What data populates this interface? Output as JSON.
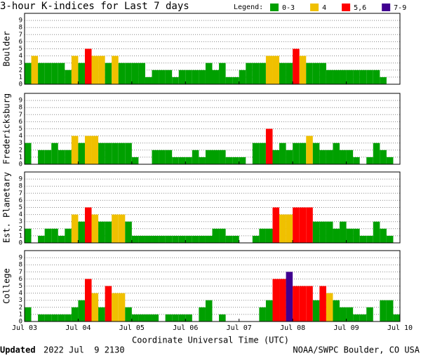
{
  "header": {
    "title": "3-hour K-indices for Last 7 days",
    "legend_title": "Legend:",
    "legend": [
      {
        "label": "0-3",
        "min": 0,
        "color": "#00a000"
      },
      {
        "label": "4",
        "min": 4,
        "color": "#f0c000"
      },
      {
        "label": "5,6",
        "min": 5,
        "color": "#ff0000"
      },
      {
        "label": "7-9",
        "min": 7,
        "color": "#400090"
      }
    ],
    "x_labels": [
      "Jul 03",
      "Jul 04",
      "Jul 05",
      "Jul 06",
      "Jul 07",
      "Jul 08",
      "Jul 09",
      "Jul 10"
    ],
    "xlabel": "Coordinate Universal Time (UTC)"
  },
  "footer": {
    "updated_label": "Updated",
    "updated_time": "2022 Jul  9 2130",
    "credit": "NOAA/SWPC Boulder, CO USA"
  },
  "chart_data": [
    {
      "type": "bar",
      "ylabel": "Boulder",
      "ylim": [
        0,
        10
      ],
      "yticks": [
        0,
        1,
        2,
        3,
        4,
        5,
        6,
        7,
        8,
        9
      ],
      "grid": true,
      "values": [
        3,
        4,
        3,
        3,
        3,
        3,
        2,
        4,
        3,
        5,
        4,
        4,
        3,
        4,
        3,
        3,
        3,
        3,
        1,
        2,
        2,
        2,
        1,
        2,
        2,
        2,
        2,
        3,
        2,
        3,
        1,
        1,
        2,
        3,
        3,
        3,
        4,
        4,
        3,
        3,
        5,
        4,
        3,
        3,
        3,
        2,
        2,
        2,
        2,
        2,
        2,
        2,
        2,
        1,
        0,
        0
      ]
    },
    {
      "type": "bar",
      "ylabel": "Fredericksburg",
      "ylim": [
        0,
        10
      ],
      "yticks": [
        0,
        1,
        2,
        3,
        4,
        5,
        6,
        7,
        8,
        9
      ],
      "grid": true,
      "values": [
        3,
        0,
        2,
        2,
        3,
        2,
        2,
        4,
        3,
        4,
        4,
        3,
        3,
        3,
        3,
        3,
        1,
        0,
        0,
        2,
        2,
        2,
        1,
        1,
        1,
        2,
        1,
        2,
        2,
        2,
        1,
        1,
        1,
        0,
        3,
        3,
        5,
        2,
        3,
        2,
        3,
        3,
        4,
        3,
        2,
        2,
        3,
        2,
        2,
        1,
        0,
        1,
        3,
        2,
        1,
        0
      ]
    },
    {
      "type": "bar",
      "ylabel": "Est. Planetary",
      "ylim": [
        0,
        10
      ],
      "yticks": [
        0,
        1,
        2,
        3,
        4,
        5,
        6,
        7,
        8,
        9
      ],
      "grid": true,
      "values": [
        2,
        0,
        1,
        2,
        2,
        1,
        2,
        4,
        3,
        5,
        4,
        3,
        3,
        4,
        4,
        3,
        1,
        1,
        1,
        1,
        1,
        1,
        1,
        1,
        1,
        1,
        1,
        1,
        2,
        2,
        1,
        1,
        0,
        0,
        1,
        2,
        2,
        5,
        4,
        4,
        5,
        5,
        5,
        3,
        3,
        3,
        2,
        3,
        2,
        2,
        1,
        1,
        3,
        2,
        1,
        0
      ]
    },
    {
      "type": "bar",
      "ylabel": "College",
      "ylim": [
        0,
        10
      ],
      "yticks": [
        0,
        1,
        2,
        3,
        4,
        5,
        6,
        7,
        8,
        9
      ],
      "grid": true,
      "values": [
        2,
        0,
        1,
        1,
        1,
        1,
        1,
        2,
        3,
        6,
        4,
        2,
        5,
        4,
        4,
        2,
        1,
        1,
        1,
        1,
        0,
        1,
        1,
        1,
        1,
        0,
        2,
        3,
        0,
        1,
        0,
        0,
        0,
        0,
        0,
        2,
        3,
        6,
        6,
        7,
        5,
        5,
        5,
        3,
        5,
        4,
        3,
        2,
        2,
        1,
        1,
        2,
        0,
        3,
        3,
        1
      ]
    }
  ]
}
